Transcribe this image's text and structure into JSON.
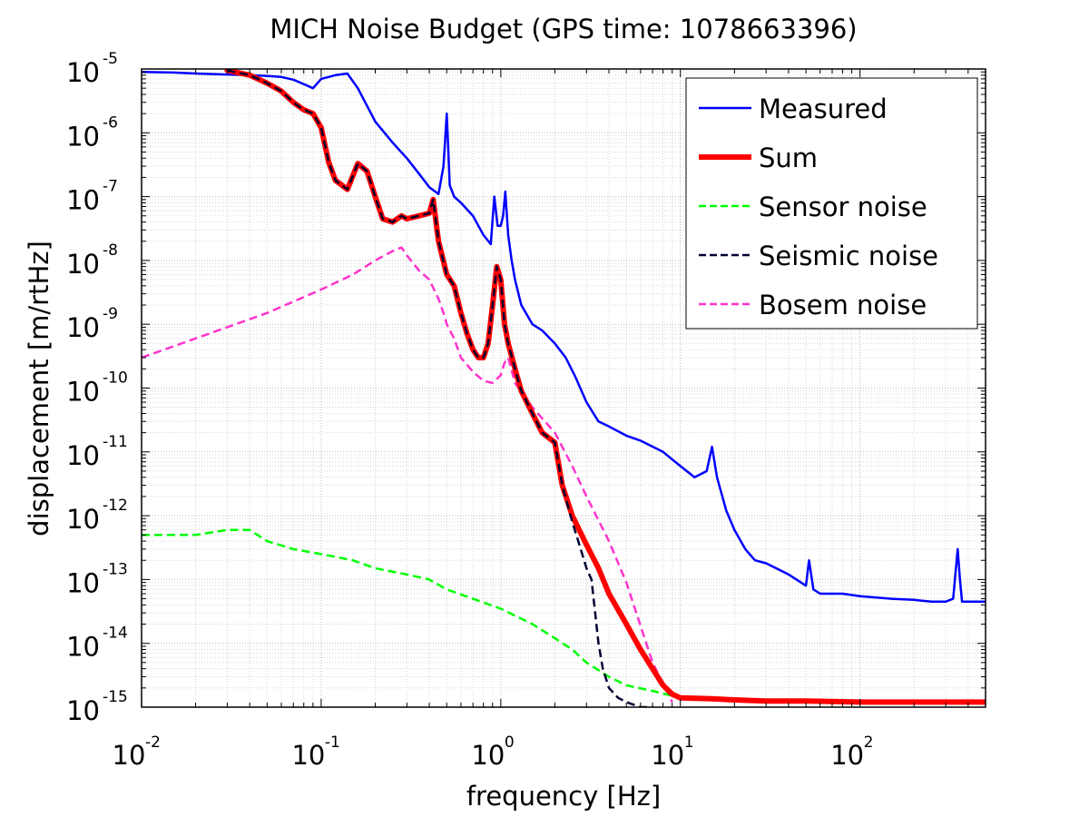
{
  "chart_data": {
    "type": "line",
    "title": "MICH Noise Budget (GPS time: 1078663396)",
    "xlabel": "frequency [Hz]",
    "ylabel": "displacement [m/rtHz]",
    "xscale": "log",
    "yscale": "log",
    "xlim": [
      0.01,
      500
    ],
    "ylim": [
      1e-15,
      1e-05
    ],
    "grid": true,
    "legend_position": "top-right",
    "x_tick_labels": [
      {
        "value": 0.01,
        "base": "10",
        "exp": "-2"
      },
      {
        "value": 0.1,
        "base": "10",
        "exp": "-1"
      },
      {
        "value": 1,
        "base": "10",
        "exp": "0"
      },
      {
        "value": 10,
        "base": "10",
        "exp": "1"
      },
      {
        "value": 100,
        "base": "10",
        "exp": "2"
      }
    ],
    "y_tick_labels": [
      {
        "value": 1e-05,
        "base": "10",
        "exp": "-5"
      },
      {
        "value": 1e-06,
        "base": "10",
        "exp": "-6"
      },
      {
        "value": 1e-07,
        "base": "10",
        "exp": "-7"
      },
      {
        "value": 1e-08,
        "base": "10",
        "exp": "-8"
      },
      {
        "value": 1e-09,
        "base": "10",
        "exp": "-9"
      },
      {
        "value": 1e-10,
        "base": "10",
        "exp": "-10"
      },
      {
        "value": 1e-11,
        "base": "10",
        "exp": "-11"
      },
      {
        "value": 1e-12,
        "base": "10",
        "exp": "-12"
      },
      {
        "value": 1e-13,
        "base": "10",
        "exp": "-13"
      },
      {
        "value": 1e-14,
        "base": "10",
        "exp": "-14"
      },
      {
        "value": 1e-15,
        "base": "10",
        "exp": "-15"
      }
    ],
    "series": [
      {
        "name": "Measured",
        "color": "#0000ff",
        "style": "solid",
        "x": [
          0.01,
          0.015,
          0.02,
          0.03,
          0.04,
          0.05,
          0.06,
          0.07,
          0.08,
          0.09,
          0.1,
          0.12,
          0.14,
          0.16,
          0.2,
          0.25,
          0.3,
          0.35,
          0.4,
          0.45,
          0.48,
          0.5,
          0.52,
          0.55,
          0.6,
          0.7,
          0.8,
          0.88,
          0.92,
          0.96,
          1.0,
          1.03,
          1.06,
          1.1,
          1.15,
          1.2,
          1.3,
          1.5,
          1.7,
          2.0,
          2.3,
          2.6,
          3.0,
          3.5,
          4.0,
          5.0,
          6.0,
          8.0,
          10,
          12,
          14,
          15,
          16,
          18,
          20,
          23,
          26,
          30,
          40,
          50,
          52,
          55,
          60,
          80,
          100,
          150,
          200,
          250,
          300,
          330,
          350,
          360,
          370,
          400,
          450,
          500
        ],
        "y": [
          9e-06,
          8.8e-06,
          8.5e-06,
          8.2e-06,
          8e-06,
          7.8e-06,
          7.5e-06,
          6.8e-06,
          5.8e-06,
          5e-06,
          7e-06,
          8e-06,
          8.5e-06,
          5e-06,
          1.5e-06,
          7e-07,
          4e-07,
          2.3e-07,
          1.4e-07,
          1.1e-07,
          3e-07,
          2e-06,
          1.5e-07,
          1e-07,
          8e-08,
          5e-08,
          2.5e-08,
          1.8e-08,
          1e-07,
          3.5e-08,
          3.5e-08,
          5e-08,
          1.2e-07,
          2.5e-08,
          1e-08,
          5e-09,
          2e-09,
          1e-09,
          8e-10,
          5e-10,
          3e-10,
          1.5e-10,
          6e-11,
          3e-11,
          2.5e-11,
          1.8e-11,
          1.5e-11,
          1e-11,
          6e-12,
          4e-12,
          5e-12,
          1.2e-11,
          4e-12,
          1.2e-12,
          6e-13,
          3e-13,
          2e-13,
          1.8e-13,
          1.2e-13,
          8e-14,
          2e-13,
          7e-14,
          6e-14,
          6e-14,
          5.5e-14,
          5e-14,
          4.8e-14,
          4.5e-14,
          4.5e-14,
          5e-14,
          3e-13,
          1e-13,
          4.5e-14,
          4.5e-14,
          4.5e-14,
          4.5e-14
        ]
      },
      {
        "name": "Sum",
        "color": "#ff0000",
        "style": "solid",
        "x": [
          0.03,
          0.04,
          0.05,
          0.06,
          0.07,
          0.08,
          0.09,
          0.1,
          0.11,
          0.12,
          0.14,
          0.16,
          0.18,
          0.2,
          0.22,
          0.25,
          0.28,
          0.3,
          0.35,
          0.4,
          0.42,
          0.45,
          0.5,
          0.55,
          0.6,
          0.65,
          0.7,
          0.75,
          0.8,
          0.85,
          0.9,
          0.95,
          1.0,
          1.05,
          1.1,
          1.2,
          1.3,
          1.5,
          1.7,
          2.0,
          2.2,
          2.5,
          3.0,
          3.5,
          4.0,
          5.0,
          6.0,
          7.0,
          8.0,
          9.0,
          10,
          15,
          20,
          30,
          50,
          100,
          200,
          300,
          500
        ],
        "y": [
          9.5e-06,
          8e-06,
          6e-06,
          4.5e-06,
          3e-06,
          2.3e-06,
          2e-06,
          1.2e-06,
          3.5e-07,
          1.8e-07,
          1.3e-07,
          3.3e-07,
          2.5e-07,
          1e-07,
          4.5e-08,
          4e-08,
          5e-08,
          4.5e-08,
          5e-08,
          5.5e-08,
          9e-08,
          2e-08,
          6e-09,
          4e-09,
          1.5e-09,
          7e-10,
          4e-10,
          3e-10,
          3e-10,
          5e-10,
          2e-09,
          8e-09,
          5e-09,
          1e-09,
          5e-10,
          2e-10,
          9e-11,
          4e-11,
          2e-11,
          1.4e-11,
          3e-12,
          1e-12,
          3.5e-13,
          1.5e-13,
          6e-14,
          2e-14,
          8e-15,
          4e-15,
          2.2e-15,
          1.6e-15,
          1.4e-15,
          1.35e-15,
          1.3e-15,
          1.25e-15,
          1.25e-15,
          1.2e-15,
          1.2e-15,
          1.2e-15,
          1.2e-15
        ]
      },
      {
        "name": "Sensor noise",
        "color": "#00ff00",
        "style": "dashed",
        "x": [
          0.01,
          0.02,
          0.03,
          0.04,
          0.05,
          0.07,
          0.1,
          0.15,
          0.2,
          0.3,
          0.4,
          0.5,
          0.7,
          1.0,
          1.5,
          2.0,
          2.5,
          3.0,
          4.0,
          5.0,
          7.0,
          10,
          20,
          50,
          100,
          200,
          500
        ],
        "y": [
          5e-13,
          5e-13,
          6e-13,
          6e-13,
          4e-13,
          3e-13,
          2.5e-13,
          2e-13,
          1.5e-13,
          1.2e-13,
          1e-13,
          7e-14,
          5e-14,
          3.5e-14,
          2e-14,
          1.2e-14,
          8e-15,
          5e-15,
          3e-15,
          2.2e-15,
          1.8e-15,
          1.4e-15,
          1.3e-15,
          1.25e-15,
          1.25e-15,
          1.2e-15,
          1.2e-15
        ]
      },
      {
        "name": "Seismic noise",
        "color": "#000033",
        "style": "dashed",
        "x": [
          0.03,
          0.04,
          0.05,
          0.06,
          0.07,
          0.08,
          0.09,
          0.1,
          0.11,
          0.12,
          0.14,
          0.16,
          0.18,
          0.2,
          0.22,
          0.25,
          0.28,
          0.3,
          0.35,
          0.4,
          0.42,
          0.45,
          0.5,
          0.55,
          0.6,
          0.65,
          0.7,
          0.75,
          0.8,
          0.85,
          0.9,
          0.95,
          1.0,
          1.05,
          1.1,
          1.2,
          1.3,
          1.5,
          1.7,
          2.0,
          2.2,
          2.5,
          2.7,
          3.0,
          3.2,
          3.5,
          3.7,
          4.0,
          4.5,
          5.0,
          6.0,
          7.0
        ],
        "y": [
          9.5e-06,
          8e-06,
          6e-06,
          4.5e-06,
          3e-06,
          2.3e-06,
          2e-06,
          1.2e-06,
          3.5e-07,
          1.8e-07,
          1.3e-07,
          3.3e-07,
          2.5e-07,
          1e-07,
          4.5e-08,
          4e-08,
          5e-08,
          4.5e-08,
          5e-08,
          5.5e-08,
          9e-08,
          2e-08,
          6e-09,
          4e-09,
          1.5e-09,
          7e-10,
          4e-10,
          3e-10,
          3e-10,
          5e-10,
          2e-09,
          8e-09,
          5e-09,
          1e-09,
          5e-10,
          2e-10,
          9e-11,
          4e-11,
          2e-11,
          1.4e-11,
          3e-12,
          8e-13,
          4e-13,
          1.5e-13,
          1e-13,
          1e-14,
          4e-15,
          2e-15,
          1.4e-15,
          1.2e-15,
          1e-15,
          1e-15
        ]
      },
      {
        "name": "Bosem noise",
        "color": "#ff33cc",
        "style": "dashed",
        "x": [
          0.01,
          0.02,
          0.05,
          0.1,
          0.15,
          0.2,
          0.25,
          0.28,
          0.3,
          0.35,
          0.4,
          0.45,
          0.48,
          0.5,
          0.55,
          0.6,
          0.7,
          0.8,
          0.9,
          1.0,
          1.05,
          1.1,
          1.2,
          1.5,
          2.0,
          2.5,
          3.0,
          4.0,
          5.0,
          7.0,
          9.0
        ],
        "y": [
          3e-10,
          6e-10,
          1.5e-09,
          3.5e-09,
          6e-09,
          1e-08,
          1.4e-08,
          1.6e-08,
          1.2e-08,
          7e-09,
          5e-09,
          2.5e-09,
          1.5e-09,
          1e-09,
          6e-10,
          3e-10,
          1.8e-10,
          1.3e-10,
          1.2e-10,
          1.6e-10,
          2.5e-10,
          3e-10,
          1.2e-10,
          5e-11,
          2e-11,
          6e-12,
          2e-12,
          4e-13,
          9e-14,
          5e-15,
          1.2e-15
        ]
      }
    ]
  }
}
